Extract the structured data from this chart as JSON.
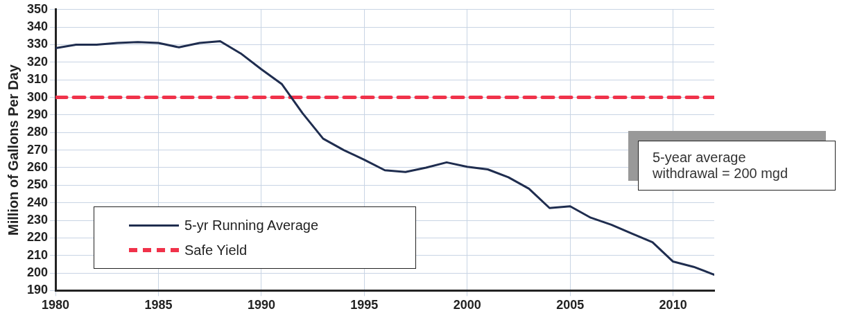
{
  "chart_data": {
    "type": "line",
    "ylabel": "Million of Gallons Per Day",
    "xlim": [
      1980,
      2012
    ],
    "xticks": [
      1980,
      1985,
      1990,
      1995,
      2000,
      2005,
      2010
    ],
    "ylim": [
      190,
      350
    ],
    "yticks": [
      190,
      200,
      210,
      220,
      230,
      240,
      250,
      260,
      270,
      280,
      290,
      300,
      310,
      320,
      330,
      340,
      350
    ],
    "grid": true,
    "legend": "bottom left",
    "marker": "none",
    "series": [
      {
        "name": "5-yr Running Average",
        "color": "#1f2d4f",
        "line_style": "solid",
        "x": [
          1980,
          1981,
          1982,
          1983,
          1984,
          1985,
          1986,
          1987,
          1988,
          1989,
          1990,
          1991,
          1992,
          1993,
          1994,
          1995,
          1996,
          1997,
          1998,
          1999,
          2000,
          2001,
          2002,
          2003,
          2004,
          2005,
          2006,
          2007,
          2008,
          2009,
          2010,
          2011,
          2012
        ],
        "values": [
          328,
          330,
          330,
          331,
          331.5,
          331,
          328.5,
          331,
          332,
          325,
          316,
          307.5,
          291,
          276.5,
          270,
          264.5,
          258.5,
          257.5,
          260,
          263,
          260.5,
          259,
          254.5,
          248,
          237,
          238,
          231.5,
          227.5,
          222.5,
          217.5,
          206.5,
          203.5,
          199
        ]
      },
      {
        "name": "Safe Yield",
        "color": "#f0324a",
        "line_style": "dashed",
        "x": [
          1980,
          2012
        ],
        "values": [
          300,
          300
        ]
      }
    ],
    "annotations": [
      "5-year average\nwithdrawal = 200 mgd"
    ]
  }
}
